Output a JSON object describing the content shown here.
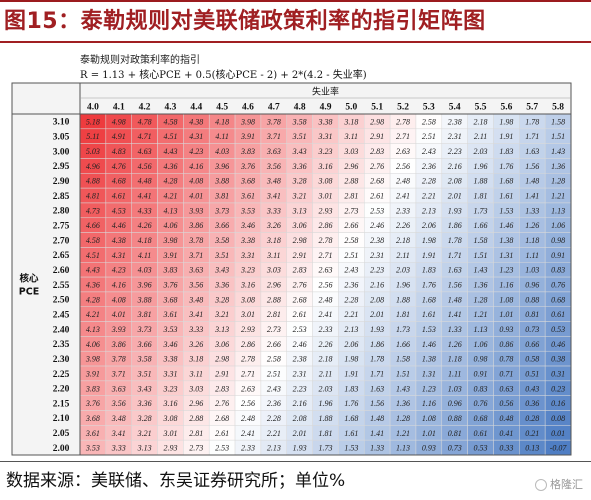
{
  "header": {
    "title": "图15：泰勒规则对美联储政策利率的指引矩阵图"
  },
  "chart_data": {
    "type": "heatmap",
    "title": "泰勒规则对政策利率的指引",
    "formula": "R = 1.13 + 核心PCE + 0.5(核心PCE - 2) + 2*(4.2 - 失业率)",
    "xlabel": "失业率",
    "ylabel": [
      "核心",
      "PCE"
    ],
    "x_values": [
      "4.0",
      "4.1",
      "4.2",
      "4.3",
      "4.4",
      "4.5",
      "4.6",
      "4.7",
      "4.8",
      "4.9",
      "5.0",
      "5.1",
      "5.2",
      "5.3",
      "5.4",
      "5.5",
      "5.6",
      "5.7",
      "5.8"
    ],
    "y_values": [
      "3.10",
      "3.05",
      "3.00",
      "2.95",
      "2.90",
      "2.85",
      "2.80",
      "2.75",
      "2.70",
      "2.65",
      "2.60",
      "2.55",
      "2.50",
      "2.45",
      "2.40",
      "2.35",
      "2.30",
      "2.25",
      "2.20",
      "2.15",
      "2.10",
      "2.05",
      "2.00"
    ],
    "cells": [
      [
        "5.18",
        "4.98",
        "4.78",
        "4.58",
        "4.38",
        "4.18",
        "3.98",
        "3.78",
        "3.58",
        "3.38",
        "3.18",
        "2.98",
        "2.78",
        "2.58",
        "2.38",
        "2.18",
        "1.98",
        "1.78",
        "1.58"
      ],
      [
        "5.11",
        "4.91",
        "4.71",
        "4.51",
        "4.31",
        "4.11",
        "3.91",
        "3.71",
        "3.51",
        "3.31",
        "3.11",
        "2.91",
        "2.71",
        "2.51",
        "2.31",
        "2.11",
        "1.91",
        "1.71",
        "1.51"
      ],
      [
        "5.03",
        "4.83",
        "4.63",
        "4.43",
        "4.23",
        "4.03",
        "3.83",
        "3.63",
        "3.43",
        "3.23",
        "3.03",
        "2.83",
        "2.63",
        "2.43",
        "2.23",
        "2.03",
        "1.83",
        "1.63",
        "1.43"
      ],
      [
        "4.96",
        "4.76",
        "4.56",
        "4.36",
        "4.16",
        "3.96",
        "3.76",
        "3.56",
        "3.36",
        "3.16",
        "2.96",
        "2.76",
        "2.56",
        "2.36",
        "2.16",
        "1.96",
        "1.76",
        "1.56",
        "1.36"
      ],
      [
        "4.88",
        "4.68",
        "4.48",
        "4.28",
        "4.08",
        "3.88",
        "3.68",
        "3.48",
        "3.28",
        "3.08",
        "2.88",
        "2.68",
        "2.48",
        "2.28",
        "2.08",
        "1.88",
        "1.68",
        "1.48",
        "1.28"
      ],
      [
        "4.81",
        "4.61",
        "4.41",
        "4.21",
        "4.01",
        "3.81",
        "3.61",
        "3.41",
        "3.21",
        "3.01",
        "2.81",
        "2.61",
        "2.41",
        "2.21",
        "2.01",
        "1.81",
        "1.61",
        "1.41",
        "1.21"
      ],
      [
        "4.73",
        "4.53",
        "4.33",
        "4.13",
        "3.93",
        "3.73",
        "3.53",
        "3.33",
        "3.13",
        "2.93",
        "2.73",
        "2.53",
        "2.33",
        "2.13",
        "1.93",
        "1.73",
        "1.53",
        "1.33",
        "1.13"
      ],
      [
        "4.66",
        "4.46",
        "4.26",
        "4.06",
        "3.86",
        "3.66",
        "3.46",
        "3.26",
        "3.06",
        "2.86",
        "2.66",
        "2.46",
        "2.26",
        "2.06",
        "1.86",
        "1.66",
        "1.46",
        "1.26",
        "1.06"
      ],
      [
        "4.58",
        "4.38",
        "4.18",
        "3.98",
        "3.78",
        "3.58",
        "3.38",
        "3.18",
        "2.98",
        "2.78",
        "2.58",
        "2.38",
        "2.18",
        "1.98",
        "1.78",
        "1.58",
        "1.38",
        "1.18",
        "0.98"
      ],
      [
        "4.51",
        "4.31",
        "4.11",
        "3.91",
        "3.71",
        "3.51",
        "3.31",
        "3.11",
        "2.91",
        "2.71",
        "2.51",
        "2.31",
        "2.11",
        "1.91",
        "1.71",
        "1.51",
        "1.31",
        "1.11",
        "0.91"
      ],
      [
        "4.43",
        "4.23",
        "4.03",
        "3.83",
        "3.63",
        "3.43",
        "3.23",
        "3.03",
        "2.83",
        "2.63",
        "2.43",
        "2.23",
        "2.03",
        "1.83",
        "1.63",
        "1.43",
        "1.23",
        "1.03",
        "0.83"
      ],
      [
        "4.36",
        "4.16",
        "3.96",
        "3.76",
        "3.56",
        "3.36",
        "3.16",
        "2.96",
        "2.76",
        "2.56",
        "2.36",
        "2.16",
        "1.96",
        "1.76",
        "1.56",
        "1.36",
        "1.16",
        "0.96",
        "0.76"
      ],
      [
        "4.28",
        "4.08",
        "3.88",
        "3.68",
        "3.48",
        "3.28",
        "3.08",
        "2.88",
        "2.68",
        "2.48",
        "2.28",
        "2.08",
        "1.88",
        "1.68",
        "1.48",
        "1.28",
        "1.08",
        "0.88",
        "0.68"
      ],
      [
        "4.21",
        "4.01",
        "3.81",
        "3.61",
        "3.41",
        "3.21",
        "3.01",
        "2.81",
        "2.61",
        "2.41",
        "2.21",
        "2.01",
        "1.81",
        "1.61",
        "1.41",
        "1.21",
        "1.01",
        "0.81",
        "0.61"
      ],
      [
        "4.13",
        "3.93",
        "3.73",
        "3.53",
        "3.33",
        "3.13",
        "2.93",
        "2.73",
        "2.53",
        "2.33",
        "2.13",
        "1.93",
        "1.73",
        "1.53",
        "1.33",
        "1.13",
        "0.93",
        "0.73",
        "0.53"
      ],
      [
        "4.06",
        "3.86",
        "3.66",
        "3.46",
        "3.26",
        "3.06",
        "2.86",
        "2.66",
        "2.46",
        "2.26",
        "2.06",
        "1.86",
        "1.66",
        "1.46",
        "1.26",
        "1.06",
        "0.86",
        "0.66",
        "0.46"
      ],
      [
        "3.98",
        "3.78",
        "3.58",
        "3.38",
        "3.18",
        "2.98",
        "2.78",
        "2.58",
        "2.38",
        "2.18",
        "1.98",
        "1.78",
        "1.58",
        "1.38",
        "1.18",
        "0.98",
        "0.78",
        "0.58",
        "0.38"
      ],
      [
        "3.91",
        "3.71",
        "3.51",
        "3.31",
        "3.11",
        "2.91",
        "2.71",
        "2.51",
        "2.31",
        "2.11",
        "1.91",
        "1.71",
        "1.51",
        "1.31",
        "1.11",
        "0.91",
        "0.71",
        "0.51",
        "0.31"
      ],
      [
        "3.83",
        "3.63",
        "3.43",
        "3.23",
        "3.03",
        "2.83",
        "2.63",
        "2.43",
        "2.23",
        "2.03",
        "1.83",
        "1.63",
        "1.43",
        "1.23",
        "1.03",
        "0.83",
        "0.63",
        "0.43",
        "0.23"
      ],
      [
        "3.76",
        "3.56",
        "3.36",
        "3.16",
        "2.96",
        "2.76",
        "2.56",
        "2.36",
        "2.16",
        "1.96",
        "1.76",
        "1.56",
        "1.36",
        "1.16",
        "0.96",
        "0.76",
        "0.56",
        "0.36",
        "0.16"
      ],
      [
        "3.68",
        "3.48",
        "3.28",
        "3.08",
        "2.88",
        "2.68",
        "2.48",
        "2.28",
        "2.08",
        "1.88",
        "1.68",
        "1.48",
        "1.28",
        "1.08",
        "0.88",
        "0.68",
        "0.48",
        "0.28",
        "0.08"
      ],
      [
        "3.61",
        "3.41",
        "3.21",
        "3.01",
        "2.81",
        "2.61",
        "2.41",
        "2.21",
        "2.01",
        "1.81",
        "1.61",
        "1.41",
        "1.21",
        "1.01",
        "0.81",
        "0.61",
        "0.41",
        "0.21",
        "0.01"
      ],
      [
        "3.53",
        "3.33",
        "3.13",
        "2.93",
        "2.73",
        "2.53",
        "2.33",
        "2.13",
        "1.93",
        "1.73",
        "1.53",
        "1.33",
        "1.13",
        "0.93",
        "0.73",
        "0.53",
        "0.33",
        "0.13",
        "-0.07"
      ]
    ],
    "colors": {
      "high": "#ee3b3e",
      "mid": "#ffffff",
      "low": "#4f7ec4",
      "header_bg": "#f4f4f4"
    }
  },
  "footer": {
    "source": "数据来源：美联储、东吴证券研究所；单位%",
    "watermark": "格隆汇"
  }
}
